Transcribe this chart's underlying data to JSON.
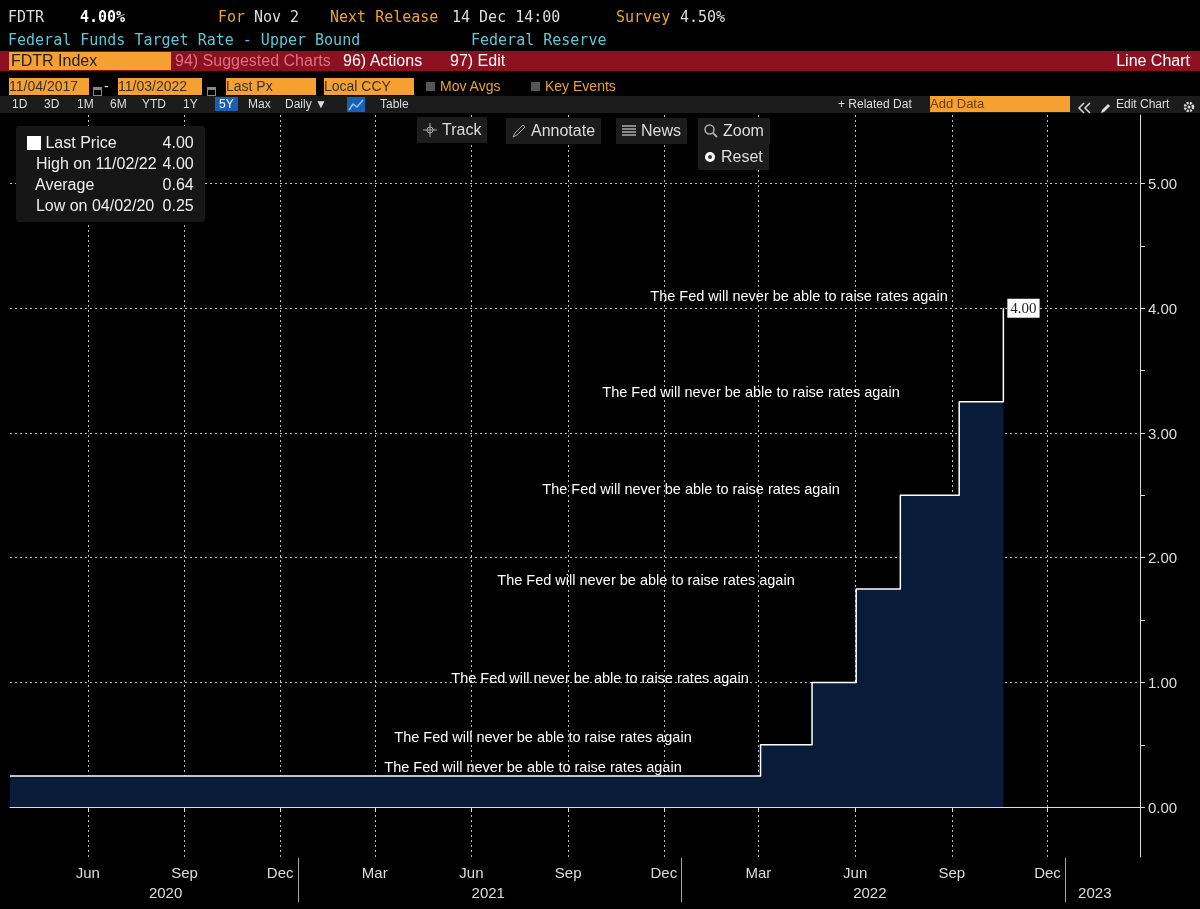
{
  "chart_data": {
    "type": "area",
    "legend": "top left",
    "grid": true,
    "x": [
      "2020-04-02",
      "2022-03-17",
      "2022-03-17",
      "2022-05-05",
      "2022-05-05",
      "2022-06-16",
      "2022-06-16",
      "2022-07-28",
      "2022-07-28",
      "2022-09-22",
      "2022-09-22",
      "2022-11-03",
      "2022-11-03"
    ],
    "series": [
      {
        "name": "Last Price",
        "color": "#ffffff",
        "values": [
          0.25,
          0.25,
          0.5,
          0.5,
          1.0,
          1.0,
          1.75,
          1.75,
          2.5,
          2.5,
          3.25,
          3.25,
          4.0
        ],
        "value_labels": [
          null,
          null,
          null,
          null,
          null,
          null,
          null,
          null,
          null,
          null,
          null,
          null,
          "4.00"
        ]
      }
    ],
    "xlim": [
      "2020-04-02",
      "2023-03-13"
    ],
    "xticks": [
      {
        "value": "2020-06-15",
        "label": "Jun"
      },
      {
        "value": "2020-09-15",
        "label": "Sep"
      },
      {
        "value": "2020-12-15",
        "label": "Dec"
      },
      {
        "value": "2021-03-15",
        "label": "Mar"
      },
      {
        "value": "2021-06-15",
        "label": "Jun"
      },
      {
        "value": "2021-09-15",
        "label": "Sep"
      },
      {
        "value": "2021-12-15",
        "label": "Dec"
      },
      {
        "value": "2022-03-15",
        "label": "Mar"
      },
      {
        "value": "2022-06-15",
        "label": "Jun"
      },
      {
        "value": "2022-09-15",
        "label": "Sep"
      },
      {
        "value": "2022-12-15",
        "label": "Dec"
      }
    ],
    "x2lim": [
      "2020-04-02",
      "2023-03-13"
    ],
    "x2ticks": [
      {
        "value": "2020-08-28",
        "label": "2020"
      },
      {
        "value": "2021-07-01",
        "label": "2021"
      },
      {
        "value": "2022-06-29",
        "label": "2022"
      },
      {
        "value": "2023-01-29",
        "label": "2023"
      }
    ],
    "ylim": [
      -0.4,
      5.55
    ],
    "yticks": [
      {
        "value": 0,
        "label": "0.00"
      },
      {
        "value": 0.5,
        "label": null
      },
      {
        "value": 1,
        "label": "1.00"
      },
      {
        "value": 1.5,
        "label": null
      },
      {
        "value": 2,
        "label": "2.00"
      },
      {
        "value": 2.5,
        "label": null
      },
      {
        "value": 3,
        "label": "3.00"
      },
      {
        "value": 3.5,
        "label": null
      },
      {
        "value": 4,
        "label": "4.00"
      },
      {
        "value": 4.5,
        "label": null
      },
      {
        "value": 5,
        "label": "5.00"
      }
    ],
    "annotations": [
      "FDTR",
      "4.00%",
      "For",
      "Nov 2",
      "Next Release",
      "14 Dec 14:00",
      "Survey",
      "4.50%",
      "Federal Funds Target Rate - Upper Bound",
      "Federal Reserve",
      "FDTR Index",
      "94) Suggested Charts",
      "96) Actions",
      "97) Edit",
      "Line Chart",
      "11/04/2017",
      "-",
      "11/03/2022",
      "Last Px",
      "Local CCY",
      "Mov Avgs",
      "Key Events",
      "1D",
      "3D",
      "1M",
      "6M",
      "YTD",
      "1Y",
      "5Y",
      "Max",
      "Daily ▼",
      "Table",
      "+ Related Dat",
      "Add Data",
      "Edit Chart",
      "Track",
      "Annotate",
      "News",
      "Zoom",
      "Reset",
      "4.00",
      "High on 11/02/22",
      "4.00",
      "Average",
      "0.64",
      "Low on 04/02/20",
      "0.25",
      "The Fed will never be able to raise rates again",
      "The Fed will never be able to raise rates again",
      "The Fed will never be able to raise rates again",
      "The Fed will never be able to raise rates again",
      "The Fed will never be able to raise rates again",
      "The Fed will never be able to raise rates again",
      "The Fed will never be able to raise rates again"
    ]
  }
}
